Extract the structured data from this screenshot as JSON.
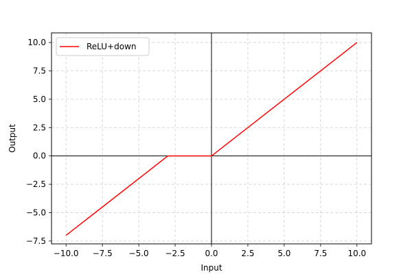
{
  "chart_data": {
    "type": "line",
    "xlabel": "Input",
    "ylabel": "Output",
    "xlim": [
      -11,
      11
    ],
    "ylim": [
      -7.75,
      10.85
    ],
    "xticks": [
      -10.0,
      -7.5,
      -5.0,
      -2.5,
      0.0,
      2.5,
      5.0,
      7.5,
      10.0
    ],
    "yticks": [
      -7.5,
      -5.0,
      -2.5,
      0.0,
      2.5,
      5.0,
      7.5,
      10.0
    ],
    "xtick_labels": [
      "−10.0",
      "−7.5",
      "−5.0",
      "−2.5",
      "0.0",
      "2.5",
      "5.0",
      "7.5",
      "10.0"
    ],
    "ytick_labels": [
      "−7.5",
      "−5.0",
      "−2.5",
      "0.0",
      "2.5",
      "5.0",
      "7.5",
      "10.0"
    ],
    "grid": true,
    "grid_style": "dashed",
    "reference_lines": {
      "x": 0,
      "y": 0
    },
    "legend_position": "top-left",
    "series": [
      {
        "name": "ReLU+down",
        "color": "#ff0000",
        "x": [
          -10,
          -3,
          0,
          10
        ],
        "y": [
          -7,
          0,
          0,
          10
        ]
      }
    ]
  }
}
